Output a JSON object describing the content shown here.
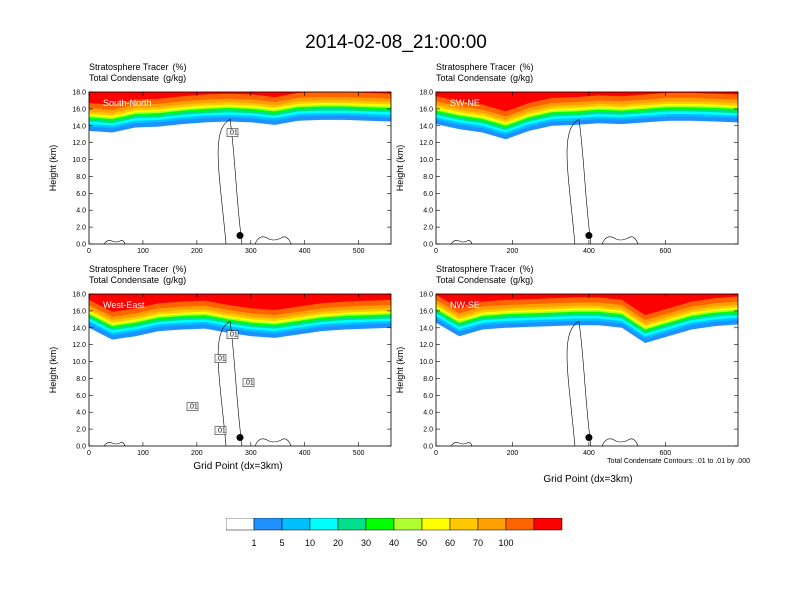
{
  "main_title": "2014-02-08_21:00:00",
  "panel_titles": {
    "tracer": "Stratosphere Tracer",
    "tracer_unit": "(%)",
    "condensate": "Total Condensate",
    "condensate_unit": "(g/kg)"
  },
  "y_axis_label": "Height (km)",
  "x_axis_label": "Grid Point (dx=3km)",
  "contour_note": "Total Condensate Contours: .01 to .01 by .000",
  "chart_data": [
    {
      "type": "heatmap",
      "name": "South-North",
      "xlim": [
        0,
        560
      ],
      "ylim": [
        0,
        18
      ],
      "x_ticks": [
        0,
        100,
        200,
        300,
        400,
        500
      ],
      "y_ticks": [
        "0.0",
        "2.0",
        "4.0",
        "6.0",
        "8.0",
        "10.0",
        "12.0",
        "14.0",
        "16.0",
        "18.0"
      ],
      "tracer_base_km": [
        13.4,
        13.2,
        13.8,
        13.9,
        14.2,
        14.4,
        14.5,
        14.4,
        14.1,
        14.6,
        14.7,
        14.7,
        14.6,
        14.5
      ],
      "marker_x": 280,
      "contour_labels": [
        ".01"
      ]
    },
    {
      "type": "heatmap",
      "name": "SW-NE",
      "xlim": [
        0,
        790
      ],
      "ylim": [
        0,
        18
      ],
      "x_ticks": [
        0,
        200,
        400,
        600
      ],
      "y_ticks": [
        "0.0",
        "2.0",
        "4.0",
        "6.0",
        "8.0",
        "10.0",
        "12.0",
        "14.0",
        "16.0",
        "18.0"
      ],
      "tracer_base_km": [
        14.2,
        13.6,
        13.2,
        12.4,
        13.4,
        14.0,
        14.1,
        14.3,
        14.2,
        14.4,
        14.6,
        14.6,
        14.5,
        14.4
      ],
      "marker_x": 400,
      "contour_labels": []
    },
    {
      "type": "heatmap",
      "name": "West-East",
      "xlim": [
        0,
        560
      ],
      "ylim": [
        0,
        18
      ],
      "x_ticks": [
        0,
        100,
        200,
        300,
        400,
        500
      ],
      "y_ticks": [
        "0.0",
        "2.0",
        "4.0",
        "6.0",
        "8.0",
        "10.0",
        "12.0",
        "14.0",
        "16.0",
        "18.0"
      ],
      "tracer_base_km": [
        14.0,
        12.6,
        13.0,
        13.6,
        13.8,
        13.9,
        13.4,
        13.0,
        12.8,
        13.2,
        13.6,
        13.8,
        13.9,
        14.0
      ],
      "marker_x": 280,
      "contour_labels": [
        ".01",
        ".01",
        ".01",
        ".01",
        ".01"
      ]
    },
    {
      "type": "heatmap",
      "name": "NW-SE",
      "xlim": [
        0,
        790
      ],
      "ylim": [
        0,
        18
      ],
      "x_ticks": [
        0,
        200,
        400,
        600
      ],
      "y_ticks": [
        "0.0",
        "2.0",
        "4.0",
        "6.0",
        "8.0",
        "10.0",
        "12.0",
        "14.0",
        "16.0",
        "18.0"
      ],
      "tracer_base_km": [
        14.6,
        13.0,
        13.8,
        14.0,
        14.1,
        14.2,
        14.3,
        14.3,
        14.0,
        12.2,
        13.0,
        13.8,
        14.2,
        14.4
      ],
      "marker_x": 400,
      "contour_labels": []
    }
  ],
  "colorbar": {
    "colors": [
      "#ffffff",
      "#1e90ff",
      "#00bfff",
      "#00ffff",
      "#00e08c",
      "#00ff00",
      "#adff2f",
      "#ffff00",
      "#ffc800",
      "#ffa000",
      "#ff6400",
      "#ff0000"
    ],
    "labels": [
      "1",
      "5",
      "10",
      "20",
      "30",
      "40",
      "50",
      "60",
      "70",
      "100"
    ]
  }
}
